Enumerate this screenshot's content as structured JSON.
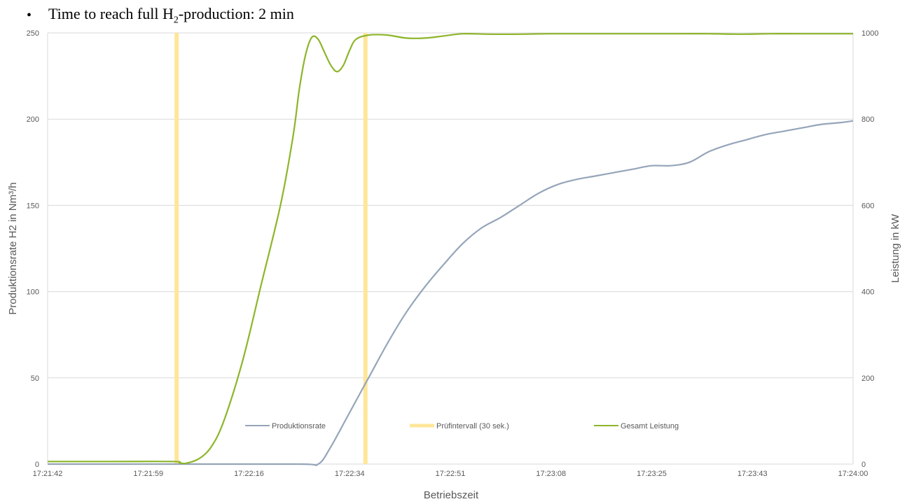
{
  "headline": {
    "bullet": "•",
    "prefix": "Time to reach full H",
    "subscript": "2",
    "suffix": "-production: 2 min"
  },
  "colors": {
    "production": "#95A5B9",
    "test_interval": "#FFE699",
    "total_power": "#8DB52A",
    "grid": "#D9D9D9",
    "text": "#595959"
  },
  "chart_data": {
    "type": "line",
    "x_ticks": [
      "17:21:42",
      "17:21:59",
      "17:22:16",
      "17:22:34",
      "17:22:51",
      "17:23:08",
      "17:23:25",
      "17:23:43",
      "17:24:00"
    ],
    "xlabel": "Betriebszeit",
    "ylabel_left": "Produktionsrate H2  in Nm³/h",
    "ylabel_right": "Leistung in kW",
    "ylim_left": [
      0,
      250
    ],
    "ylim_right": [
      0,
      1000
    ],
    "y_ticks_left": [
      "0",
      "50",
      "100",
      "150",
      "200",
      "250"
    ],
    "y_ticks_right": [
      "0",
      "200",
      "400",
      "600",
      "800",
      "1000"
    ],
    "grid": true,
    "legend_position": "inside-bottom",
    "series": [
      {
        "name": "Produktionsrate",
        "axis": "left",
        "points": [
          [
            0,
            0
          ],
          [
            20,
            0
          ],
          [
            40,
            0
          ],
          [
            43,
            0
          ],
          [
            45,
            10
          ],
          [
            48,
            30
          ],
          [
            51,
            50
          ],
          [
            54,
            70
          ],
          [
            57,
            88
          ],
          [
            60,
            103
          ],
          [
            63,
            116
          ],
          [
            66,
            128
          ],
          [
            69,
            137
          ],
          [
            72,
            143
          ],
          [
            75,
            150
          ],
          [
            78,
            157
          ],
          [
            81,
            162
          ],
          [
            84,
            165
          ],
          [
            87,
            167
          ],
          [
            90,
            169
          ],
          [
            93,
            171
          ],
          [
            96,
            173
          ],
          [
            99,
            173
          ],
          [
            102,
            175
          ],
          [
            105,
            181
          ],
          [
            108,
            185
          ],
          [
            111,
            188
          ],
          [
            114,
            191
          ],
          [
            117,
            193
          ],
          [
            120,
            195
          ],
          [
            123,
            197
          ],
          [
            126,
            198
          ],
          [
            128,
            199
          ]
        ]
      },
      {
        "name": "Prüfintervall (30 sek.)",
        "axis": "left",
        "type": "vertical-markers",
        "x": [
          20.5,
          50.5
        ]
      },
      {
        "name": "Gesamt Leistung",
        "axis": "right",
        "points": [
          [
            0,
            6
          ],
          [
            10,
            6
          ],
          [
            20,
            6
          ],
          [
            21,
            3
          ],
          [
            22,
            2
          ],
          [
            24,
            12
          ],
          [
            26,
            40
          ],
          [
            28,
            100
          ],
          [
            31,
            240
          ],
          [
            34,
            420
          ],
          [
            37,
            600
          ],
          [
            39,
            760
          ],
          [
            40,
            870
          ],
          [
            41,
            950
          ],
          [
            42,
            990
          ],
          [
            43,
            985
          ],
          [
            44,
            955
          ],
          [
            45,
            925
          ],
          [
            46,
            910
          ],
          [
            47,
            925
          ],
          [
            48,
            960
          ],
          [
            49,
            985
          ],
          [
            51,
            995
          ],
          [
            54,
            995
          ],
          [
            57,
            988
          ],
          [
            60,
            988
          ],
          [
            63,
            993
          ],
          [
            66,
            998
          ],
          [
            70,
            997
          ],
          [
            75,
            997
          ],
          [
            80,
            998
          ],
          [
            90,
            998
          ],
          [
            100,
            998
          ],
          [
            105,
            998
          ],
          [
            110,
            997
          ],
          [
            115,
            998
          ],
          [
            120,
            998
          ],
          [
            128,
            998
          ]
        ]
      }
    ]
  }
}
